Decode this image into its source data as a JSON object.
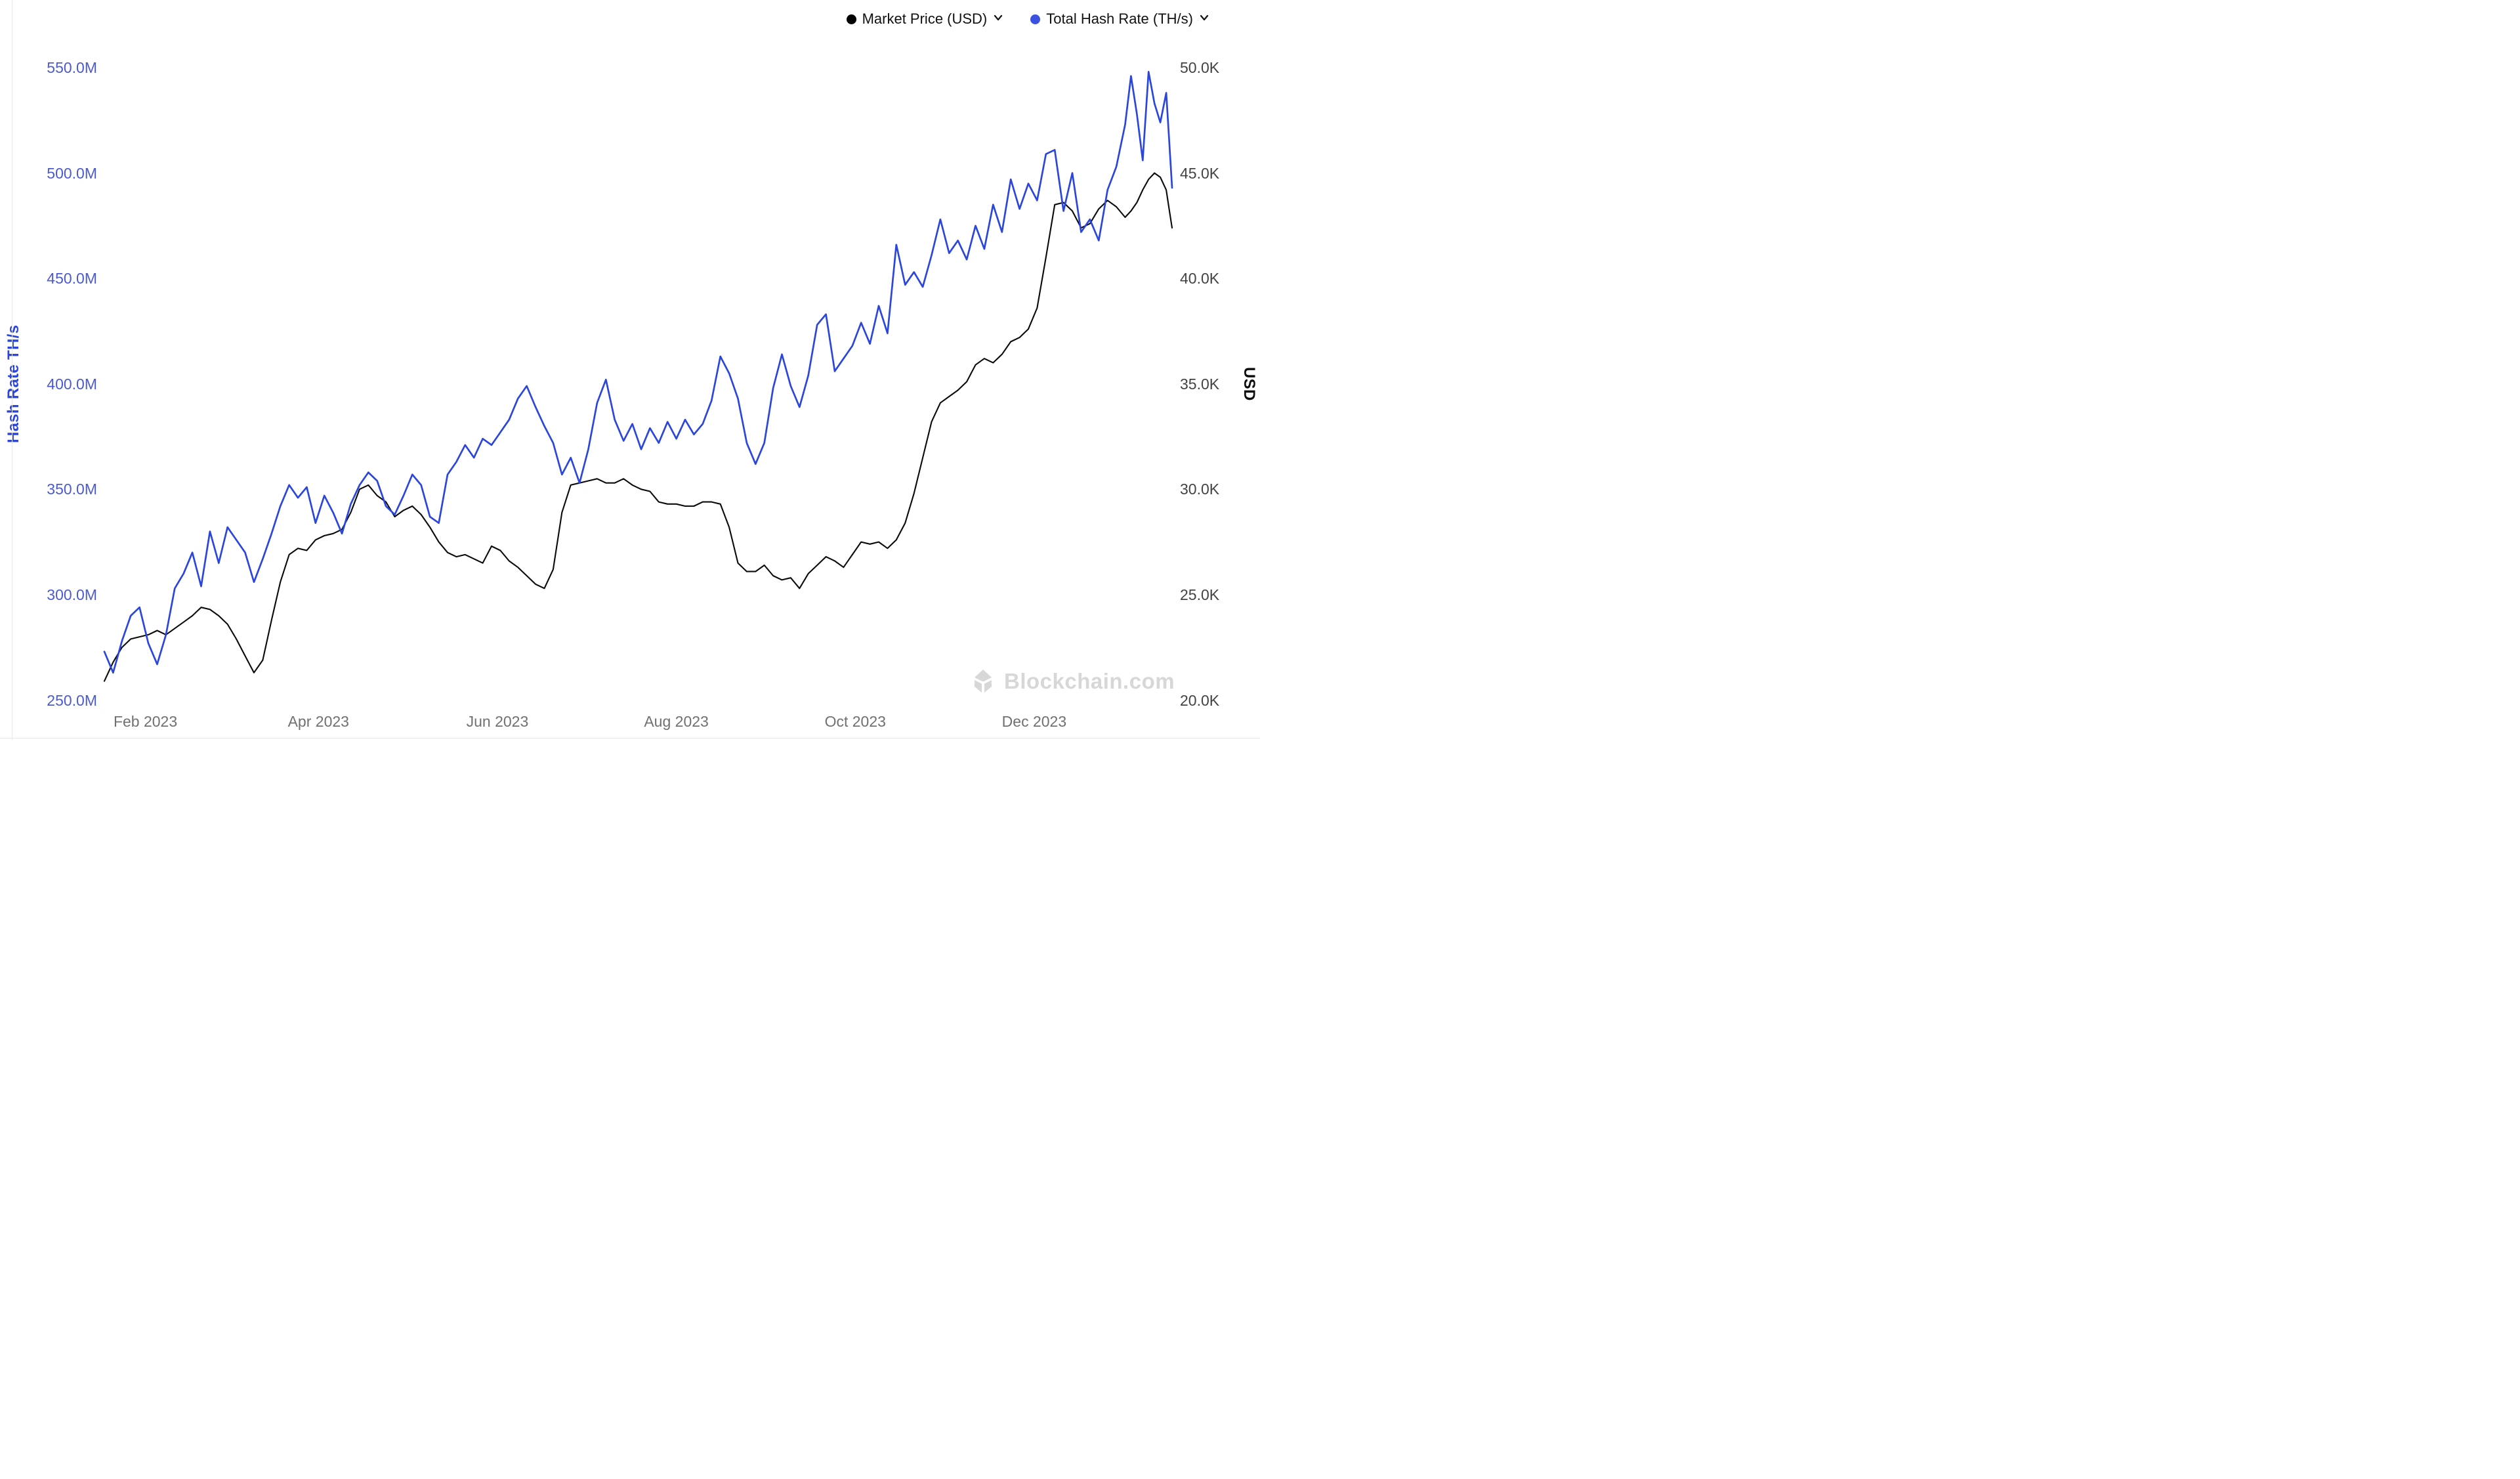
{
  "legend": {
    "items": [
      {
        "label": "Market Price (USD)",
        "color": "#000000"
      },
      {
        "label": "Total Hash Rate (TH/s)",
        "color": "#3b52e1"
      }
    ]
  },
  "axes": {
    "left": {
      "title": "Hash Rate TH/s",
      "color": "#2b46dc",
      "ticks": [
        {
          "label": "550.0M",
          "value": 550
        },
        {
          "label": "500.0M",
          "value": 500
        },
        {
          "label": "450.0M",
          "value": 450
        },
        {
          "label": "400.0M",
          "value": 400
        },
        {
          "label": "350.0M",
          "value": 350
        },
        {
          "label": "300.0M",
          "value": 300
        },
        {
          "label": "250.0M",
          "value": 250
        }
      ]
    },
    "right": {
      "title": "USD",
      "color": "#0d0d0d",
      "ticks": [
        {
          "label": "50.0K",
          "value": 50
        },
        {
          "label": "45.0K",
          "value": 45
        },
        {
          "label": "40.0K",
          "value": 40
        },
        {
          "label": "35.0K",
          "value": 35
        },
        {
          "label": "30.0K",
          "value": 30
        },
        {
          "label": "25.0K",
          "value": 25
        },
        {
          "label": "20.0K",
          "value": 20
        }
      ]
    },
    "x": {
      "ticks": [
        {
          "label": "Feb 2023",
          "date": "2023-02-01"
        },
        {
          "label": "Apr 2023",
          "date": "2023-04-01"
        },
        {
          "label": "Jun 2023",
          "date": "2023-06-01"
        },
        {
          "label": "Aug 2023",
          "date": "2023-08-01"
        },
        {
          "label": "Oct 2023",
          "date": "2023-10-01"
        },
        {
          "label": "Dec 2023",
          "date": "2023-12-01"
        }
      ]
    }
  },
  "watermark": {
    "text": "Blockchain.com"
  },
  "chart_data": {
    "type": "line",
    "title": "",
    "grid": false,
    "legend_position": "top-right",
    "x_range": [
      "2023-01-18",
      "2024-01-17"
    ],
    "left_ylim": [
      250,
      550
    ],
    "right_ylim": [
      20,
      50
    ],
    "left_unit": "M TH/s",
    "right_unit": "K USD",
    "series": [
      {
        "name": "Market Price (USD)",
        "axis": "right",
        "unit": "K USD",
        "color": "#0a0a0a",
        "points": [
          [
            "2023-01-18",
            20.9
          ],
          [
            "2023-01-21",
            21.8
          ],
          [
            "2023-01-24",
            22.5
          ],
          [
            "2023-01-27",
            22.9
          ],
          [
            "2023-01-30",
            23.0
          ],
          [
            "2023-02-02",
            23.1
          ],
          [
            "2023-02-05",
            23.3
          ],
          [
            "2023-02-08",
            23.1
          ],
          [
            "2023-02-11",
            23.4
          ],
          [
            "2023-02-14",
            23.7
          ],
          [
            "2023-02-17",
            24.0
          ],
          [
            "2023-02-20",
            24.4
          ],
          [
            "2023-02-23",
            24.3
          ],
          [
            "2023-02-26",
            24.0
          ],
          [
            "2023-03-01",
            23.6
          ],
          [
            "2023-03-04",
            22.9
          ],
          [
            "2023-03-07",
            22.1
          ],
          [
            "2023-03-10",
            21.3
          ],
          [
            "2023-03-13",
            21.9
          ],
          [
            "2023-03-16",
            23.8
          ],
          [
            "2023-03-19",
            25.6
          ],
          [
            "2023-03-22",
            26.9
          ],
          [
            "2023-03-25",
            27.2
          ],
          [
            "2023-03-28",
            27.1
          ],
          [
            "2023-03-31",
            27.6
          ],
          [
            "2023-04-03",
            27.8
          ],
          [
            "2023-04-06",
            27.9
          ],
          [
            "2023-04-09",
            28.1
          ],
          [
            "2023-04-12",
            28.9
          ],
          [
            "2023-04-15",
            30.0
          ],
          [
            "2023-04-18",
            30.2
          ],
          [
            "2023-04-21",
            29.7
          ],
          [
            "2023-04-24",
            29.4
          ],
          [
            "2023-04-27",
            28.7
          ],
          [
            "2023-04-30",
            29.0
          ],
          [
            "2023-05-03",
            29.2
          ],
          [
            "2023-05-06",
            28.8
          ],
          [
            "2023-05-09",
            28.2
          ],
          [
            "2023-05-12",
            27.5
          ],
          [
            "2023-05-15",
            27.0
          ],
          [
            "2023-05-18",
            26.8
          ],
          [
            "2023-05-21",
            26.9
          ],
          [
            "2023-05-24",
            26.7
          ],
          [
            "2023-05-27",
            26.5
          ],
          [
            "2023-05-30",
            27.3
          ],
          [
            "2023-06-02",
            27.1
          ],
          [
            "2023-06-05",
            26.6
          ],
          [
            "2023-06-08",
            26.3
          ],
          [
            "2023-06-11",
            25.9
          ],
          [
            "2023-06-14",
            25.5
          ],
          [
            "2023-06-17",
            25.3
          ],
          [
            "2023-06-20",
            26.2
          ],
          [
            "2023-06-23",
            28.9
          ],
          [
            "2023-06-26",
            30.2
          ],
          [
            "2023-06-29",
            30.3
          ],
          [
            "2023-07-02",
            30.4
          ],
          [
            "2023-07-05",
            30.5
          ],
          [
            "2023-07-08",
            30.3
          ],
          [
            "2023-07-11",
            30.3
          ],
          [
            "2023-07-14",
            30.5
          ],
          [
            "2023-07-17",
            30.2
          ],
          [
            "2023-07-20",
            30.0
          ],
          [
            "2023-07-23",
            29.9
          ],
          [
            "2023-07-26",
            29.4
          ],
          [
            "2023-07-29",
            29.3
          ],
          [
            "2023-08-01",
            29.3
          ],
          [
            "2023-08-04",
            29.2
          ],
          [
            "2023-08-07",
            29.2
          ],
          [
            "2023-08-10",
            29.4
          ],
          [
            "2023-08-13",
            29.4
          ],
          [
            "2023-08-16",
            29.3
          ],
          [
            "2023-08-19",
            28.2
          ],
          [
            "2023-08-22",
            26.5
          ],
          [
            "2023-08-25",
            26.1
          ],
          [
            "2023-08-28",
            26.1
          ],
          [
            "2023-08-31",
            26.4
          ],
          [
            "2023-09-03",
            25.9
          ],
          [
            "2023-09-06",
            25.7
          ],
          [
            "2023-09-09",
            25.8
          ],
          [
            "2023-09-12",
            25.3
          ],
          [
            "2023-09-15",
            26.0
          ],
          [
            "2023-09-18",
            26.4
          ],
          [
            "2023-09-21",
            26.8
          ],
          [
            "2023-09-24",
            26.6
          ],
          [
            "2023-09-27",
            26.3
          ],
          [
            "2023-09-30",
            26.9
          ],
          [
            "2023-10-03",
            27.5
          ],
          [
            "2023-10-06",
            27.4
          ],
          [
            "2023-10-09",
            27.5
          ],
          [
            "2023-10-12",
            27.2
          ],
          [
            "2023-10-15",
            27.6
          ],
          [
            "2023-10-18",
            28.4
          ],
          [
            "2023-10-21",
            29.8
          ],
          [
            "2023-10-24",
            31.5
          ],
          [
            "2023-10-27",
            33.2
          ],
          [
            "2023-10-30",
            34.1
          ],
          [
            "2023-11-02",
            34.4
          ],
          [
            "2023-11-05",
            34.7
          ],
          [
            "2023-11-08",
            35.1
          ],
          [
            "2023-11-11",
            35.9
          ],
          [
            "2023-11-14",
            36.2
          ],
          [
            "2023-11-17",
            36.0
          ],
          [
            "2023-11-20",
            36.4
          ],
          [
            "2023-11-23",
            37.0
          ],
          [
            "2023-11-26",
            37.2
          ],
          [
            "2023-11-29",
            37.6
          ],
          [
            "2023-12-02",
            38.6
          ],
          [
            "2023-12-05",
            41.0
          ],
          [
            "2023-12-08",
            43.5
          ],
          [
            "2023-12-11",
            43.6
          ],
          [
            "2023-12-14",
            43.2
          ],
          [
            "2023-12-17",
            42.4
          ],
          [
            "2023-12-20",
            42.6
          ],
          [
            "2023-12-23",
            43.3
          ],
          [
            "2023-12-26",
            43.7
          ],
          [
            "2023-12-29",
            43.4
          ],
          [
            "2024-01-01",
            42.9
          ],
          [
            "2024-01-03",
            43.2
          ],
          [
            "2024-01-05",
            43.6
          ],
          [
            "2024-01-07",
            44.2
          ],
          [
            "2024-01-09",
            44.7
          ],
          [
            "2024-01-11",
            45.0
          ],
          [
            "2024-01-13",
            44.8
          ],
          [
            "2024-01-15",
            44.2
          ],
          [
            "2024-01-16",
            43.3
          ],
          [
            "2024-01-17",
            42.4
          ]
        ]
      },
      {
        "name": "Total Hash Rate (TH/s)",
        "axis": "left",
        "unit": "M TH/s",
        "color": "#2b46dc",
        "points": [
          [
            "2023-01-18",
            273
          ],
          [
            "2023-01-21",
            263
          ],
          [
            "2023-01-24",
            278
          ],
          [
            "2023-01-27",
            290
          ],
          [
            "2023-01-30",
            294
          ],
          [
            "2023-02-02",
            277
          ],
          [
            "2023-02-05",
            267
          ],
          [
            "2023-02-08",
            281
          ],
          [
            "2023-02-11",
            303
          ],
          [
            "2023-02-14",
            310
          ],
          [
            "2023-02-17",
            320
          ],
          [
            "2023-02-20",
            304
          ],
          [
            "2023-02-23",
            330
          ],
          [
            "2023-02-26",
            315
          ],
          [
            "2023-03-01",
            332
          ],
          [
            "2023-03-04",
            326
          ],
          [
            "2023-03-07",
            320
          ],
          [
            "2023-03-10",
            306
          ],
          [
            "2023-03-13",
            317
          ],
          [
            "2023-03-16",
            329
          ],
          [
            "2023-03-19",
            342
          ],
          [
            "2023-03-22",
            352
          ],
          [
            "2023-03-25",
            346
          ],
          [
            "2023-03-28",
            351
          ],
          [
            "2023-03-31",
            334
          ],
          [
            "2023-04-03",
            347
          ],
          [
            "2023-04-06",
            339
          ],
          [
            "2023-04-09",
            329
          ],
          [
            "2023-04-12",
            343
          ],
          [
            "2023-04-15",
            352
          ],
          [
            "2023-04-18",
            358
          ],
          [
            "2023-04-21",
            354
          ],
          [
            "2023-04-24",
            342
          ],
          [
            "2023-04-27",
            338
          ],
          [
            "2023-04-30",
            347
          ],
          [
            "2023-05-03",
            357
          ],
          [
            "2023-05-06",
            352
          ],
          [
            "2023-05-09",
            337
          ],
          [
            "2023-05-12",
            334
          ],
          [
            "2023-05-15",
            357
          ],
          [
            "2023-05-18",
            363
          ],
          [
            "2023-05-21",
            371
          ],
          [
            "2023-05-24",
            365
          ],
          [
            "2023-05-27",
            374
          ],
          [
            "2023-05-30",
            371
          ],
          [
            "2023-06-02",
            377
          ],
          [
            "2023-06-05",
            383
          ],
          [
            "2023-06-08",
            393
          ],
          [
            "2023-06-11",
            399
          ],
          [
            "2023-06-14",
            389
          ],
          [
            "2023-06-17",
            380
          ],
          [
            "2023-06-20",
            372
          ],
          [
            "2023-06-23",
            357
          ],
          [
            "2023-06-26",
            365
          ],
          [
            "2023-06-29",
            353
          ],
          [
            "2023-07-02",
            369
          ],
          [
            "2023-07-05",
            391
          ],
          [
            "2023-07-08",
            402
          ],
          [
            "2023-07-11",
            383
          ],
          [
            "2023-07-14",
            373
          ],
          [
            "2023-07-17",
            381
          ],
          [
            "2023-07-20",
            369
          ],
          [
            "2023-07-23",
            379
          ],
          [
            "2023-07-26",
            372
          ],
          [
            "2023-07-29",
            382
          ],
          [
            "2023-08-01",
            374
          ],
          [
            "2023-08-04",
            383
          ],
          [
            "2023-08-07",
            376
          ],
          [
            "2023-08-10",
            381
          ],
          [
            "2023-08-13",
            392
          ],
          [
            "2023-08-16",
            413
          ],
          [
            "2023-08-19",
            405
          ],
          [
            "2023-08-22",
            393
          ],
          [
            "2023-08-25",
            372
          ],
          [
            "2023-08-28",
            362
          ],
          [
            "2023-08-31",
            372
          ],
          [
            "2023-09-03",
            398
          ],
          [
            "2023-09-06",
            414
          ],
          [
            "2023-09-09",
            399
          ],
          [
            "2023-09-12",
            389
          ],
          [
            "2023-09-15",
            404
          ],
          [
            "2023-09-18",
            428
          ],
          [
            "2023-09-21",
            433
          ],
          [
            "2023-09-24",
            406
          ],
          [
            "2023-09-27",
            412
          ],
          [
            "2023-09-30",
            418
          ],
          [
            "2023-10-03",
            429
          ],
          [
            "2023-10-06",
            419
          ],
          [
            "2023-10-09",
            437
          ],
          [
            "2023-10-12",
            424
          ],
          [
            "2023-10-15",
            466
          ],
          [
            "2023-10-18",
            447
          ],
          [
            "2023-10-21",
            453
          ],
          [
            "2023-10-24",
            446
          ],
          [
            "2023-10-27",
            461
          ],
          [
            "2023-10-30",
            478
          ],
          [
            "2023-11-02",
            462
          ],
          [
            "2023-11-05",
            468
          ],
          [
            "2023-11-08",
            459
          ],
          [
            "2023-11-11",
            475
          ],
          [
            "2023-11-14",
            464
          ],
          [
            "2023-11-17",
            485
          ],
          [
            "2023-11-20",
            472
          ],
          [
            "2023-11-23",
            497
          ],
          [
            "2023-11-26",
            483
          ],
          [
            "2023-11-29",
            495
          ],
          [
            "2023-12-02",
            487
          ],
          [
            "2023-12-05",
            509
          ],
          [
            "2023-12-08",
            511
          ],
          [
            "2023-12-11",
            482
          ],
          [
            "2023-12-14",
            500
          ],
          [
            "2023-12-17",
            472
          ],
          [
            "2023-12-20",
            478
          ],
          [
            "2023-12-23",
            468
          ],
          [
            "2023-12-26",
            492
          ],
          [
            "2023-12-29",
            503
          ],
          [
            "2024-01-01",
            523
          ],
          [
            "2024-01-03",
            546
          ],
          [
            "2024-01-05",
            528
          ],
          [
            "2024-01-07",
            506
          ],
          [
            "2024-01-09",
            548
          ],
          [
            "2024-01-11",
            533
          ],
          [
            "2024-01-13",
            524
          ],
          [
            "2024-01-15",
            538
          ],
          [
            "2024-01-16",
            516
          ],
          [
            "2024-01-17",
            493
          ]
        ]
      }
    ]
  }
}
